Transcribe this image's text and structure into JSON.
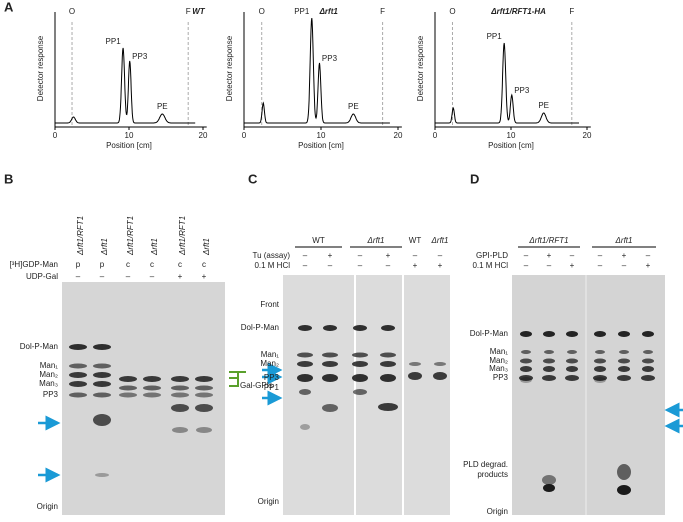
{
  "panel_a": {
    "letter": "A",
    "x_label": "Position [cm]",
    "y_label": "Detector response",
    "x_ticks": [
      "0",
      "10",
      "20"
    ],
    "plots": [
      {
        "title": "WT",
        "origin": "O",
        "front": "F",
        "peaks": [
          "PP1",
          "PP3",
          "PE"
        ]
      },
      {
        "title": "Δrft1",
        "origin": "O",
        "front": "F",
        "peaks": [
          "PP1",
          "PP3",
          "PE"
        ]
      },
      {
        "title": "Δrft1/RFT1-HA",
        "origin": "O",
        "front": "F",
        "peaks": [
          "PP1",
          "PP3",
          "PE"
        ]
      }
    ]
  },
  "panel_b": {
    "letter": "B",
    "lanes": [
      "Δrft1/RFT1",
      "Δrft1",
      "Δrft1/RFT1",
      "Δrft1",
      "Δrft1/RFT1",
      "Δrft1"
    ],
    "rows": [
      {
        "label": "[³H]GDP-Man",
        "values": [
          "p",
          "p",
          "c",
          "c",
          "c",
          "c"
        ]
      },
      {
        "label": "UDP-Gal",
        "values": [
          "–",
          "–",
          "–",
          "–",
          "+",
          "+"
        ]
      }
    ],
    "markers": [
      "Dol-P-Man",
      "Man₁",
      "Man₂",
      "Man₃",
      "PP3",
      "Origin"
    ],
    "side_label": "Gal-GPIs"
  },
  "panel_c": {
    "letter": "C",
    "groups": [
      "WT",
      "Δrft1",
      "WT",
      "Δrft1"
    ],
    "rows": [
      {
        "label": "Tu (assay)",
        "values": [
          "–",
          "+",
          "–",
          "+",
          "–",
          "–"
        ]
      },
      {
        "label": "0.1 M HCl",
        "values": [
          "–",
          "–",
          "–",
          "–",
          "+",
          "+"
        ]
      }
    ],
    "markers": [
      "Front",
      "Dol-P-Man",
      "Man₁",
      "Man₂",
      "PP3",
      "PP1",
      "Origin"
    ]
  },
  "panel_d": {
    "letter": "D",
    "groups": [
      "Δrft1/RFT1",
      "Δrft1"
    ],
    "rows": [
      {
        "label": "GPI-PLD",
        "values": [
          "–",
          "+",
          "–",
          "–",
          "+",
          "–"
        ]
      },
      {
        "label": "0.1 M HCl",
        "values": [
          "–",
          "–",
          "+",
          "–",
          "–",
          "+"
        ]
      }
    ],
    "markers": [
      "Dol-P-Man",
      "Man₁",
      "Man₂",
      "Man₃",
      "PP3",
      "PLD degrad.",
      "products",
      "Origin"
    ]
  }
}
